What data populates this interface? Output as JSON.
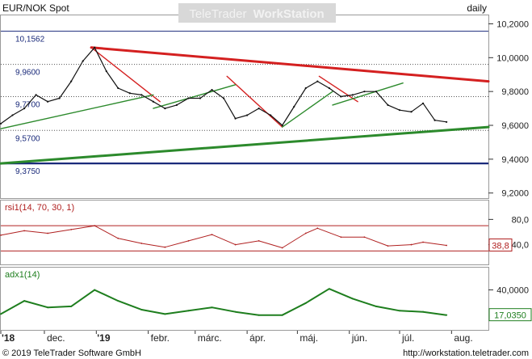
{
  "header": {
    "symbol": "EUR/NOK Spot",
    "watermark": "TeleTrader WorkStation",
    "watermark_brand": "TeleTrader",
    "watermark_product": "WorkStation",
    "interval": "daily"
  },
  "footer": {
    "copyright": "© 2019 TeleTrader Software GmbH",
    "url": "http://workstation.teletrader.com"
  },
  "colors": {
    "price": "#111111",
    "trend_red": "#d42020",
    "trend_green": "#2c8a2c",
    "support_blue": "#1a2a7a",
    "rsi": "#b02020",
    "adx": "#1e7e1e",
    "axis_text": "#222222"
  },
  "chart_data": [
    {
      "type": "line",
      "name": "price",
      "title": "EUR/NOK Spot",
      "x_label_date_range": [
        "2018-11-05",
        "2019-08-23"
      ],
      "x_ticks": [
        {
          "label": "'18",
          "date": "2018-11-05"
        },
        {
          "label": "dec.",
          "date": "2018-12-01"
        },
        {
          "label": "'19",
          "date": "2019-01-01"
        },
        {
          "label": "febr.",
          "date": "2019-02-01"
        },
        {
          "label": "márc.",
          "date": "2019-03-01"
        },
        {
          "label": "ápr.",
          "date": "2019-04-01"
        },
        {
          "label": "máj.",
          "date": "2019-05-01"
        },
        {
          "label": "jún.",
          "date": "2019-06-01"
        },
        {
          "label": "júl.",
          "date": "2019-07-01"
        },
        {
          "label": "aug.",
          "date": "2019-08-01"
        }
      ],
      "y_ticks": [
        "10,2000",
        "10,0000",
        "9,8000",
        "9,6000",
        "9,4000",
        "9,2000"
      ],
      "y_tick_values": [
        10.2,
        10.0,
        9.8,
        9.6,
        9.4,
        9.2
      ],
      "ylim": [
        9.17,
        10.25
      ],
      "level_lines": [
        {
          "label": "10,1562",
          "value": 10.1562,
          "style": "solid",
          "color": "#1a2a7a"
        },
        {
          "label": "9,9600",
          "value": 9.96,
          "style": "dotted",
          "color": "#444444"
        },
        {
          "label": "9,7700",
          "value": 9.77,
          "style": "dotted",
          "color": "#444444"
        },
        {
          "label": "9,5700",
          "value": 9.57,
          "style": "dotted",
          "color": "#444444"
        },
        {
          "label": "9,3750",
          "value": 9.375,
          "style": "solid-thick",
          "color": "#1a2a7a"
        }
      ],
      "series": [
        {
          "values": [
            [
              "2018-11-05",
              9.61
            ],
            [
              "2018-11-12",
              9.66
            ],
            [
              "2018-11-19",
              9.7
            ],
            [
              "2018-11-26",
              9.78
            ],
            [
              "2018-12-03",
              9.74
            ],
            [
              "2018-12-10",
              9.76
            ],
            [
              "2018-12-17",
              9.86
            ],
            [
              "2018-12-24",
              9.98
            ],
            [
              "2018-12-31",
              10.06
            ],
            [
              "2019-01-07",
              9.92
            ],
            [
              "2019-01-14",
              9.82
            ],
            [
              "2019-01-21",
              9.79
            ],
            [
              "2019-01-28",
              9.78
            ],
            [
              "2019-02-04",
              9.74
            ],
            [
              "2019-02-11",
              9.7
            ],
            [
              "2019-02-18",
              9.72
            ],
            [
              "2019-02-25",
              9.76
            ],
            [
              "2019-03-04",
              9.76
            ],
            [
              "2019-03-11",
              9.81
            ],
            [
              "2019-03-18",
              9.76
            ],
            [
              "2019-03-25",
              9.64
            ],
            [
              "2019-04-01",
              9.66
            ],
            [
              "2019-04-08",
              9.7
            ],
            [
              "2019-04-15",
              9.66
            ],
            [
              "2019-04-22",
              9.6
            ],
            [
              "2019-04-29",
              9.71
            ],
            [
              "2019-05-06",
              9.82
            ],
            [
              "2019-05-13",
              9.86
            ],
            [
              "2019-05-20",
              9.82
            ],
            [
              "2019-05-27",
              9.77
            ],
            [
              "2019-06-03",
              9.78
            ],
            [
              "2019-06-10",
              9.8
            ],
            [
              "2019-06-17",
              9.8
            ],
            [
              "2019-06-24",
              9.72
            ],
            [
              "2019-07-01",
              9.69
            ],
            [
              "2019-07-08",
              9.68
            ],
            [
              "2019-07-15",
              9.73
            ],
            [
              "2019-07-22",
              9.63
            ],
            [
              "2019-07-29",
              9.62
            ]
          ]
        }
      ],
      "trendlines": [
        {
          "color": "red",
          "points": [
            [
              "2018-12-29",
              10.06
            ],
            [
              "2019-08-23",
              9.86
            ]
          ]
        },
        {
          "color": "red",
          "points": [
            [
              "2018-12-29",
              10.06
            ],
            [
              "2019-02-08",
              9.74
            ]
          ]
        },
        {
          "color": "red",
          "points": [
            [
              "2019-03-20",
              9.89
            ],
            [
              "2019-04-22",
              9.59
            ]
          ]
        },
        {
          "color": "red",
          "points": [
            [
              "2019-05-14",
              9.89
            ],
            [
              "2019-06-06",
              9.74
            ]
          ]
        },
        {
          "color": "green",
          "points": [
            [
              "2018-11-05",
              9.375
            ],
            [
              "2019-08-23",
              9.59
            ]
          ]
        },
        {
          "color": "green",
          "points": [
            [
              "2018-11-05",
              9.58
            ],
            [
              "2019-02-04",
              9.78
            ]
          ]
        },
        {
          "color": "green",
          "points": [
            [
              "2019-02-04",
              9.7
            ],
            [
              "2019-03-25",
              9.84
            ]
          ]
        },
        {
          "color": "green",
          "points": [
            [
              "2019-04-22",
              9.59
            ],
            [
              "2019-05-22",
              9.8
            ]
          ]
        },
        {
          "color": "green",
          "points": [
            [
              "2019-05-22",
              9.72
            ],
            [
              "2019-07-03",
              9.85
            ]
          ]
        }
      ]
    },
    {
      "type": "line",
      "name": "rsi",
      "label": "rsi1(14, 70, 30, 1)",
      "y_ticks": [
        "80,0",
        "40,0"
      ],
      "y_tick_values": [
        80,
        40
      ],
      "ylim": [
        10,
        92
      ],
      "levels": [
        70,
        30
      ],
      "last_value_label": "38,8",
      "last_value": 38.8,
      "series": [
        {
          "values": [
            [
              "2018-11-05",
              55
            ],
            [
              "2018-11-19",
              62
            ],
            [
              "2018-12-03",
              58
            ],
            [
              "2018-12-17",
              64
            ],
            [
              "2018-12-31",
              70
            ],
            [
              "2019-01-14",
              50
            ],
            [
              "2019-01-28",
              42
            ],
            [
              "2019-02-11",
              36
            ],
            [
              "2019-02-25",
              46
            ],
            [
              "2019-03-11",
              56
            ],
            [
              "2019-03-25",
              40
            ],
            [
              "2019-04-08",
              46
            ],
            [
              "2019-04-22",
              35
            ],
            [
              "2019-05-06",
              58
            ],
            [
              "2019-05-13",
              66
            ],
            [
              "2019-05-27",
              52
            ],
            [
              "2019-06-10",
              52
            ],
            [
              "2019-06-24",
              38
            ],
            [
              "2019-07-08",
              40
            ],
            [
              "2019-07-15",
              44
            ],
            [
              "2019-07-29",
              38.8
            ]
          ]
        }
      ]
    },
    {
      "type": "line",
      "name": "adx",
      "label": "adx1(14)",
      "y_ticks": [
        "40,0000"
      ],
      "y_tick_values": [
        40
      ],
      "ylim": [
        5,
        50
      ],
      "last_value_label": "17,0350",
      "last_value": 17.035,
      "series": [
        {
          "values": [
            [
              "2018-11-05",
              18
            ],
            [
              "2018-11-19",
              30
            ],
            [
              "2018-12-03",
              24
            ],
            [
              "2018-12-17",
              25
            ],
            [
              "2018-12-31",
              40
            ],
            [
              "2019-01-14",
              30
            ],
            [
              "2019-01-28",
              22
            ],
            [
              "2019-02-11",
              18
            ],
            [
              "2019-02-25",
              21
            ],
            [
              "2019-03-11",
              24
            ],
            [
              "2019-03-25",
              20
            ],
            [
              "2019-04-08",
              17
            ],
            [
              "2019-04-22",
              17
            ],
            [
              "2019-05-06",
              28
            ],
            [
              "2019-05-20",
              41
            ],
            [
              "2019-06-03",
              32
            ],
            [
              "2019-06-17",
              25
            ],
            [
              "2019-07-01",
              21
            ],
            [
              "2019-07-15",
              20
            ],
            [
              "2019-07-29",
              17.035
            ]
          ]
        }
      ]
    }
  ]
}
